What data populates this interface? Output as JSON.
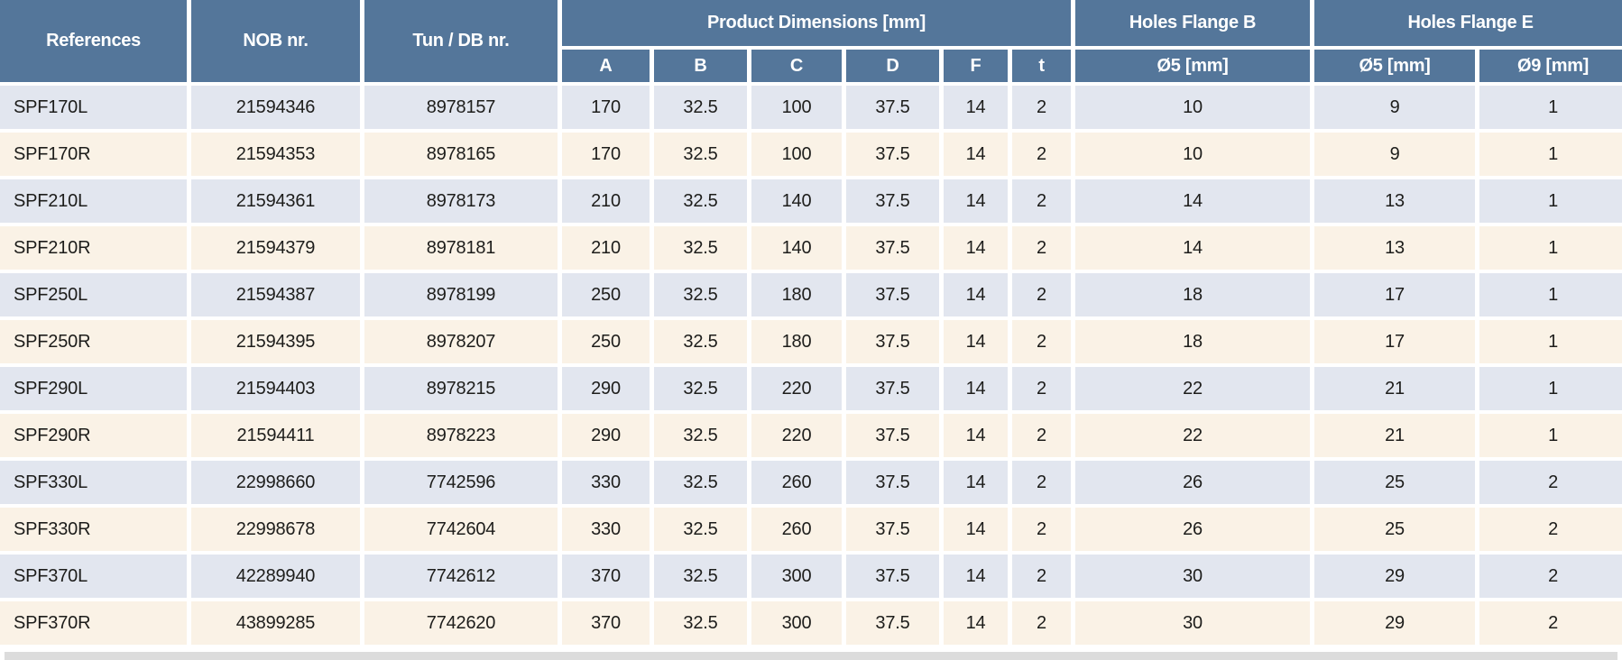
{
  "table": {
    "headers": {
      "references": "References",
      "nob_nr": "NOB nr.",
      "tun_db_nr": "Tun / DB nr.",
      "product_dimensions": "Product Dimensions [mm]",
      "holes_flange_b": "Holes Flange B",
      "holes_flange_e": "Holes Flange E"
    },
    "sub_headers": {
      "dim_a": "A",
      "dim_b": "B",
      "dim_c": "C",
      "dim_d": "D",
      "dim_f": "F",
      "dim_t": "t",
      "flange_b_d5": "Ø5 [mm]",
      "flange_e_d5": "Ø5 [mm]",
      "flange_e_d9": "Ø9 [mm]"
    },
    "rows": [
      {
        "reference": "SPF170L",
        "nob_nr": "21594346",
        "tun_db_nr": "8978157",
        "dim_a": "170",
        "dim_b": "32.5",
        "dim_c": "100",
        "dim_d": "37.5",
        "dim_f": "14",
        "dim_t": "2",
        "flange_b_d5": "10",
        "flange_e_d5": "9",
        "flange_e_d9": "1"
      },
      {
        "reference": "SPF170R",
        "nob_nr": "21594353",
        "tun_db_nr": "8978165",
        "dim_a": "170",
        "dim_b": "32.5",
        "dim_c": "100",
        "dim_d": "37.5",
        "dim_f": "14",
        "dim_t": "2",
        "flange_b_d5": "10",
        "flange_e_d5": "9",
        "flange_e_d9": "1"
      },
      {
        "reference": "SPF210L",
        "nob_nr": "21594361",
        "tun_db_nr": "8978173",
        "dim_a": "210",
        "dim_b": "32.5",
        "dim_c": "140",
        "dim_d": "37.5",
        "dim_f": "14",
        "dim_t": "2",
        "flange_b_d5": "14",
        "flange_e_d5": "13",
        "flange_e_d9": "1"
      },
      {
        "reference": "SPF210R",
        "nob_nr": "21594379",
        "tun_db_nr": "8978181",
        "dim_a": "210",
        "dim_b": "32.5",
        "dim_c": "140",
        "dim_d": "37.5",
        "dim_f": "14",
        "dim_t": "2",
        "flange_b_d5": "14",
        "flange_e_d5": "13",
        "flange_e_d9": "1"
      },
      {
        "reference": "SPF250L",
        "nob_nr": "21594387",
        "tun_db_nr": "8978199",
        "dim_a": "250",
        "dim_b": "32.5",
        "dim_c": "180",
        "dim_d": "37.5",
        "dim_f": "14",
        "dim_t": "2",
        "flange_b_d5": "18",
        "flange_e_d5": "17",
        "flange_e_d9": "1"
      },
      {
        "reference": "SPF250R",
        "nob_nr": "21594395",
        "tun_db_nr": "8978207",
        "dim_a": "250",
        "dim_b": "32.5",
        "dim_c": "180",
        "dim_d": "37.5",
        "dim_f": "14",
        "dim_t": "2",
        "flange_b_d5": "18",
        "flange_e_d5": "17",
        "flange_e_d9": "1"
      },
      {
        "reference": "SPF290L",
        "nob_nr": "21594403",
        "tun_db_nr": "8978215",
        "dim_a": "290",
        "dim_b": "32.5",
        "dim_c": "220",
        "dim_d": "37.5",
        "dim_f": "14",
        "dim_t": "2",
        "flange_b_d5": "22",
        "flange_e_d5": "21",
        "flange_e_d9": "1"
      },
      {
        "reference": "SPF290R",
        "nob_nr": "21594411",
        "tun_db_nr": "8978223",
        "dim_a": "290",
        "dim_b": "32.5",
        "dim_c": "220",
        "dim_d": "37.5",
        "dim_f": "14",
        "dim_t": "2",
        "flange_b_d5": "22",
        "flange_e_d5": "21",
        "flange_e_d9": "1"
      },
      {
        "reference": "SPF330L",
        "nob_nr": "22998660",
        "tun_db_nr": "7742596",
        "dim_a": "330",
        "dim_b": "32.5",
        "dim_c": "260",
        "dim_d": "37.5",
        "dim_f": "14",
        "dim_t": "2",
        "flange_b_d5": "26",
        "flange_e_d5": "25",
        "flange_e_d9": "2"
      },
      {
        "reference": "SPF330R",
        "nob_nr": "22998678",
        "tun_db_nr": "7742604",
        "dim_a": "330",
        "dim_b": "32.5",
        "dim_c": "260",
        "dim_d": "37.5",
        "dim_f": "14",
        "dim_t": "2",
        "flange_b_d5": "26",
        "flange_e_d5": "25",
        "flange_e_d9": "2"
      },
      {
        "reference": "SPF370L",
        "nob_nr": "42289940",
        "tun_db_nr": "7742612",
        "dim_a": "370",
        "dim_b": "32.5",
        "dim_c": "300",
        "dim_d": "37.5",
        "dim_f": "14",
        "dim_t": "2",
        "flange_b_d5": "30",
        "flange_e_d5": "29",
        "flange_e_d9": "2"
      },
      {
        "reference": "SPF370R",
        "nob_nr": "43899285",
        "tun_db_nr": "7742620",
        "dim_a": "370",
        "dim_b": "32.5",
        "dim_c": "300",
        "dim_d": "37.5",
        "dim_f": "14",
        "dim_t": "2",
        "flange_b_d5": "30",
        "flange_e_d5": "29",
        "flange_e_d9": "2"
      }
    ]
  },
  "colors": {
    "header_bg": "#54769A",
    "header_text": "#FFFFFF",
    "row_blue_bg": "#E2E6EF",
    "row_cream_bg": "#FAF2E6",
    "cell_text": "#1D1D1B",
    "bottom_strip": "#DCDCDC",
    "page_bg": "#FFFFFF"
  }
}
